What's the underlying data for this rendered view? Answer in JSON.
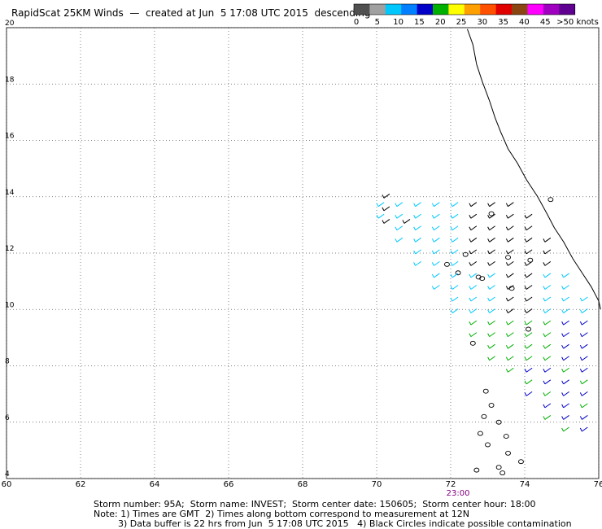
{
  "header": {
    "title": "RapidScat 25KM Winds  —  created at Jun  5 17:08 UTC 2015  descending"
  },
  "legend": {
    "unit_label": ">50 knots",
    "ticks": [
      "0",
      "5",
      "10",
      "15",
      "20",
      "25",
      "30",
      "35",
      "40",
      "45"
    ],
    "colors": [
      "#505050",
      "#a0a0a0",
      "#00c8ff",
      "#0080ff",
      "#0000c8",
      "#00b000",
      "#ffff00",
      "#ffa000",
      "#ff5000",
      "#e00000",
      "#8b4513",
      "#ff00ff",
      "#a000c0",
      "#600090"
    ]
  },
  "map": {
    "x_ticks": [
      "60",
      "62",
      "64",
      "66",
      "68",
      "70",
      "72",
      "74",
      "76"
    ],
    "y_ticks": [
      "20",
      "18",
      "16",
      "14",
      "12",
      "10",
      "8",
      "6",
      "4"
    ],
    "lon_range": [
      60,
      76
    ],
    "lat_range": [
      4,
      20
    ],
    "time_label": "23:00",
    "time_label_lon": 72.2
  },
  "footer": {
    "line1": "Storm number: 95A;  Storm name: INVEST;  Storm center date: 150605;  Storm center hour: 18:00",
    "line2": "Note: 1) Times are GMT  2) Times along bottom correspond to measurement at 12N",
    "line3": "3) Data buffer is 22 hrs from Jun  5 17:08 UTC 2015   4) Black Circles indicate possible contamination"
  }
}
